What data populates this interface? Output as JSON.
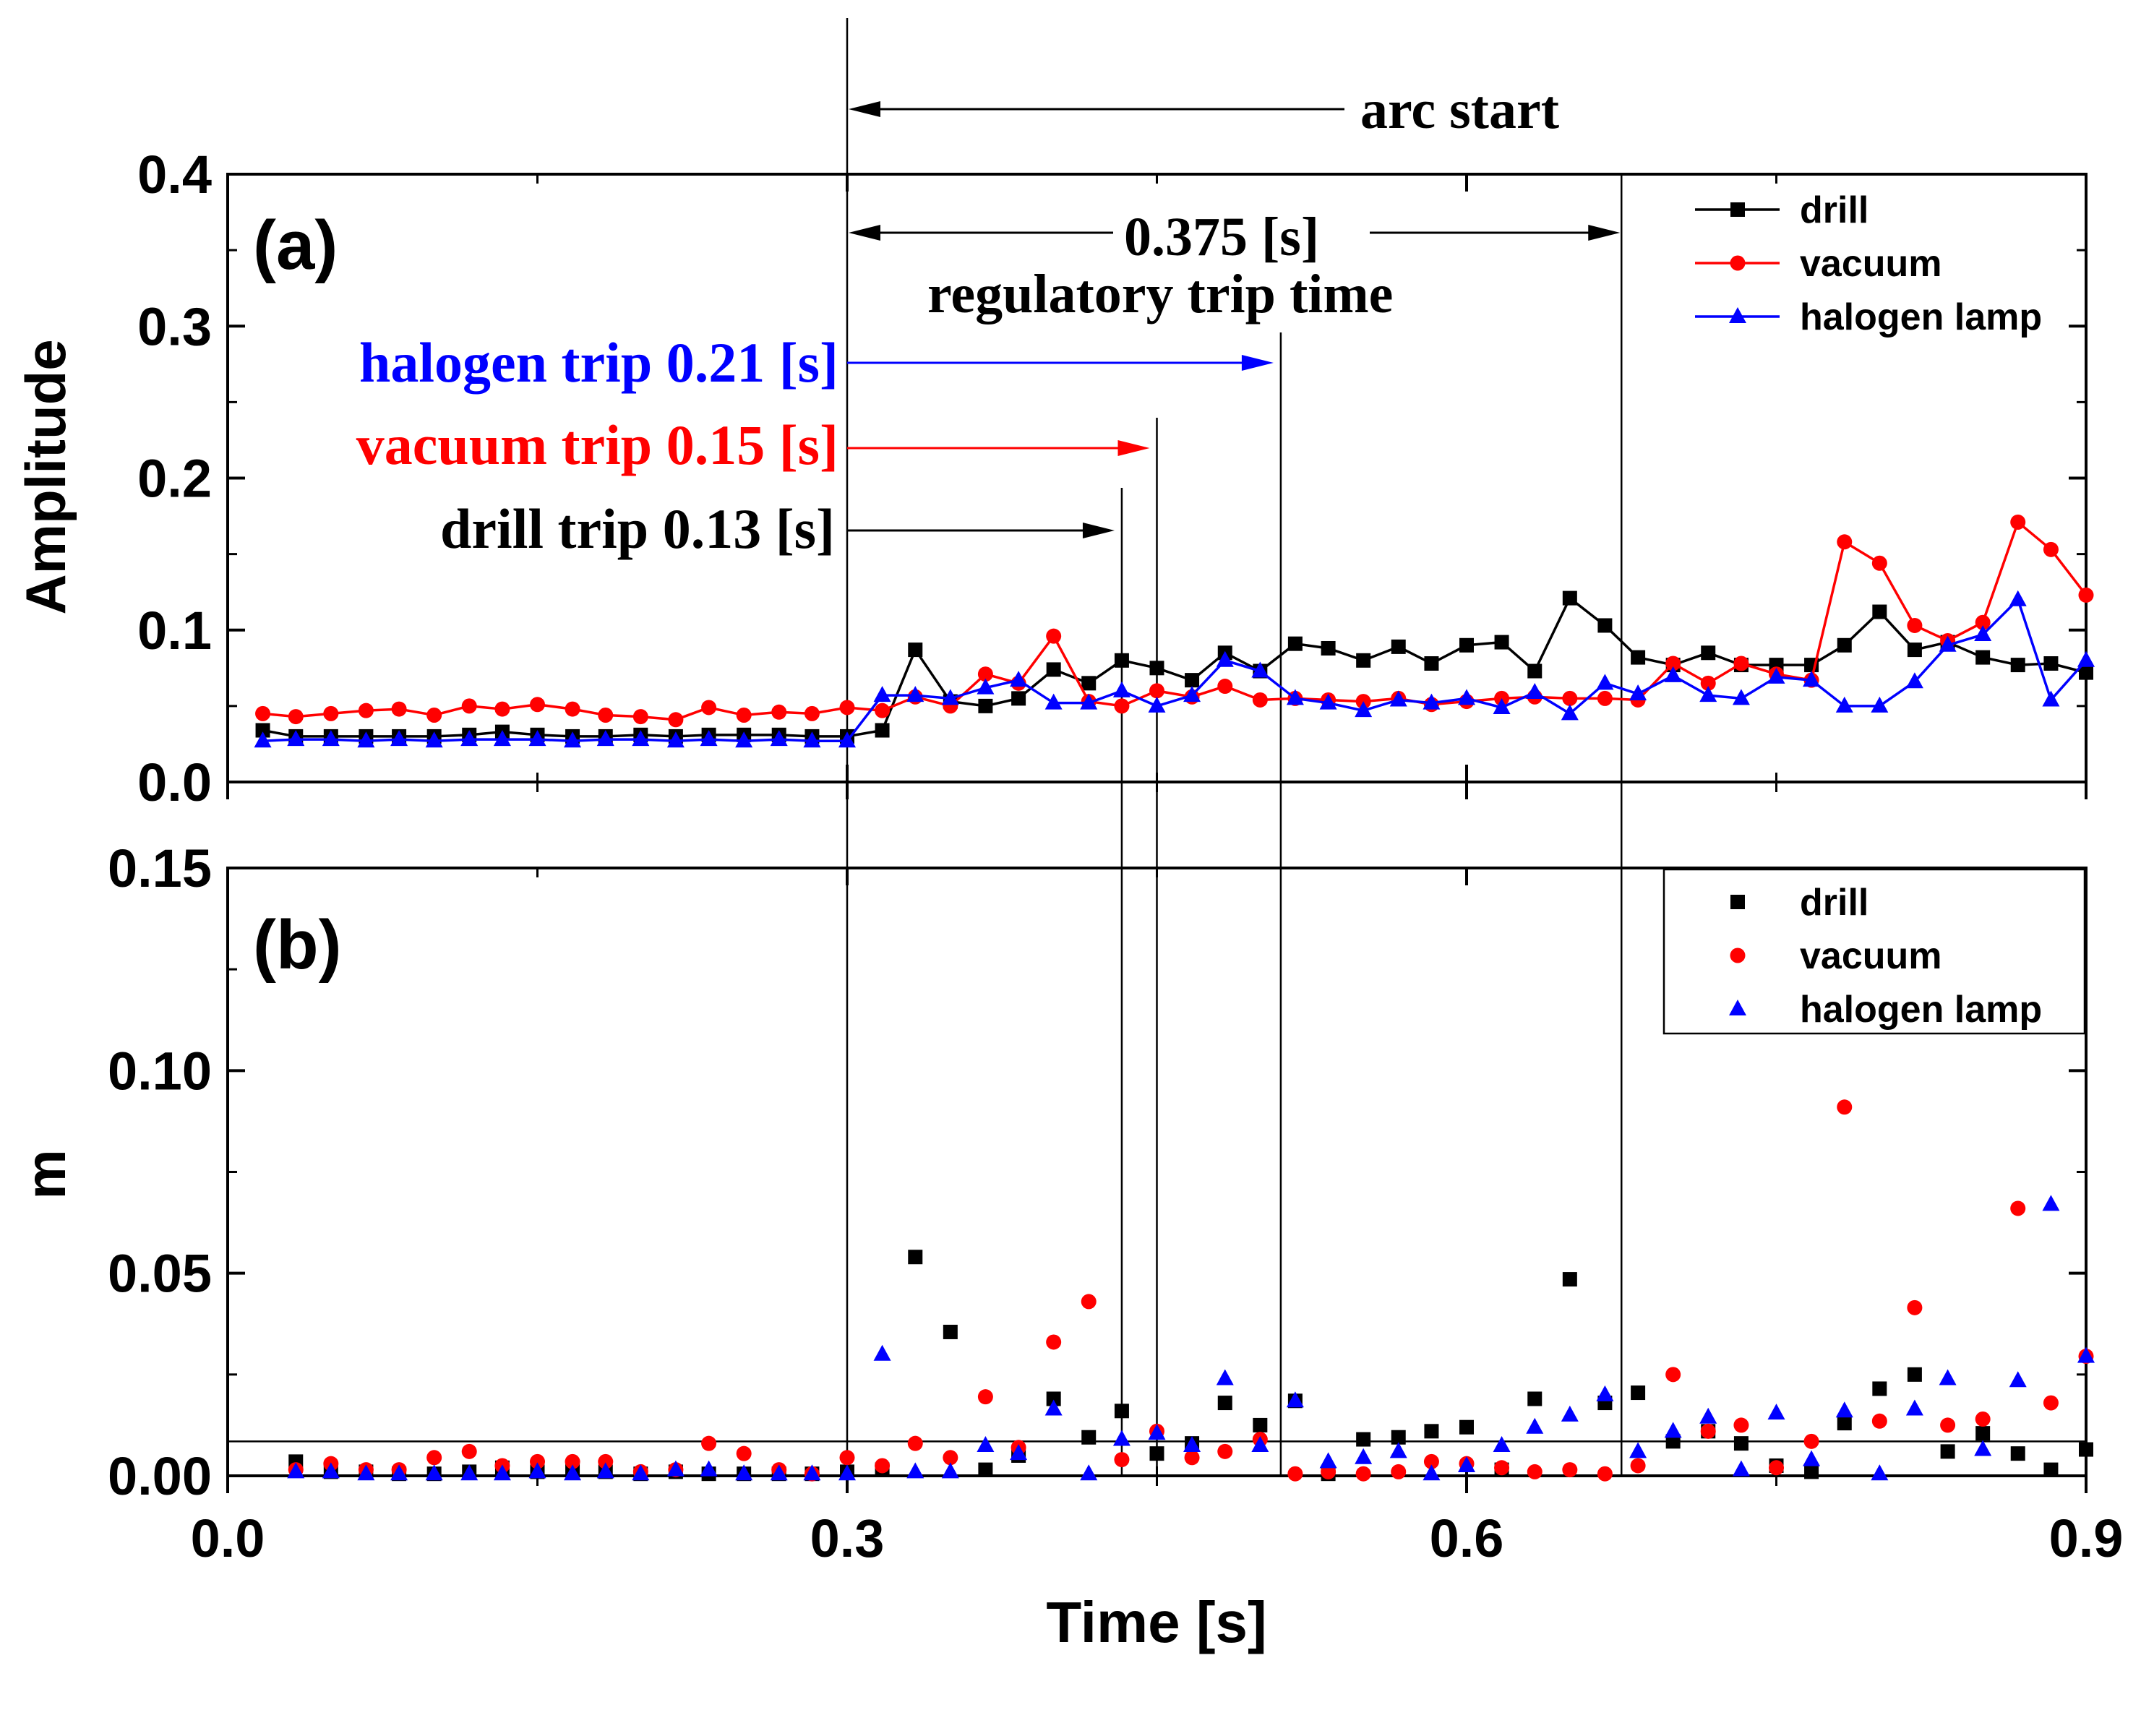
{
  "chart_data": [
    {
      "panel": "(a)",
      "type": "line",
      "xlabel": "",
      "ylabel": "Amplitude",
      "xlim": [
        0,
        0.9
      ],
      "ylim": [
        0,
        0.4
      ],
      "xticks": [
        "0.0",
        "0.3",
        "0.6",
        "0.9"
      ],
      "yticks": [
        "0.0",
        "0.1",
        "0.2",
        "0.3",
        "0.4"
      ],
      "legend_position": "top-right",
      "series": [
        {
          "name": "drill",
          "color": "#000000",
          "marker": "square",
          "x": [
            0.017,
            0.033,
            0.05,
            0.067,
            0.083,
            0.1,
            0.117,
            0.133,
            0.15,
            0.167,
            0.183,
            0.2,
            0.217,
            0.233,
            0.25,
            0.267,
            0.283,
            0.3,
            0.317,
            0.333,
            0.35,
            0.367,
            0.383,
            0.4,
            0.417,
            0.433,
            0.45,
            0.467,
            0.483,
            0.5,
            0.517,
            0.533,
            0.55,
            0.567,
            0.583,
            0.6,
            0.617,
            0.633,
            0.65,
            0.667,
            0.683,
            0.7,
            0.717,
            0.733,
            0.75,
            0.767,
            0.783,
            0.8,
            0.817,
            0.833,
            0.85,
            0.867,
            0.883,
            0.9
          ],
          "values": [
            0.034,
            0.03,
            0.03,
            0.03,
            0.03,
            0.03,
            0.031,
            0.033,
            0.031,
            0.03,
            0.03,
            0.031,
            0.03,
            0.031,
            0.031,
            0.031,
            0.03,
            0.03,
            0.034,
            0.087,
            0.053,
            0.05,
            0.055,
            0.074,
            0.065,
            0.08,
            0.075,
            0.067,
            0.085,
            0.073,
            0.091,
            0.088,
            0.08,
            0.089,
            0.078,
            0.09,
            0.092,
            0.073,
            0.121,
            0.103,
            0.082,
            0.077,
            0.085,
            0.077,
            0.077,
            0.077,
            0.09,
            0.112,
            0.087,
            0.092,
            0.082,
            0.077,
            0.078,
            0.072
          ]
        },
        {
          "name": "vacuum",
          "color": "#ff0000",
          "marker": "circle",
          "x": [
            0.017,
            0.033,
            0.05,
            0.067,
            0.083,
            0.1,
            0.117,
            0.133,
            0.15,
            0.167,
            0.183,
            0.2,
            0.217,
            0.233,
            0.25,
            0.267,
            0.283,
            0.3,
            0.317,
            0.333,
            0.35,
            0.367,
            0.383,
            0.4,
            0.417,
            0.433,
            0.45,
            0.467,
            0.483,
            0.5,
            0.517,
            0.533,
            0.55,
            0.567,
            0.583,
            0.6,
            0.617,
            0.633,
            0.65,
            0.667,
            0.683,
            0.7,
            0.717,
            0.733,
            0.75,
            0.767,
            0.783,
            0.8,
            0.817,
            0.833,
            0.85,
            0.867,
            0.883,
            0.9
          ],
          "values": [
            0.045,
            0.043,
            0.045,
            0.047,
            0.048,
            0.044,
            0.05,
            0.048,
            0.051,
            0.048,
            0.044,
            0.043,
            0.041,
            0.049,
            0.044,
            0.046,
            0.045,
            0.049,
            0.047,
            0.056,
            0.05,
            0.071,
            0.065,
            0.096,
            0.053,
            0.05,
            0.06,
            0.056,
            0.063,
            0.054,
            0.055,
            0.054,
            0.053,
            0.055,
            0.051,
            0.053,
            0.055,
            0.056,
            0.055,
            0.055,
            0.054,
            0.078,
            0.065,
            0.078,
            0.071,
            0.067,
            0.158,
            0.144,
            0.103,
            0.093,
            0.105,
            0.171,
            0.153,
            0.123
          ]
        },
        {
          "name": "halogen lamp",
          "color": "#0000ff",
          "marker": "triangle",
          "x": [
            0.017,
            0.033,
            0.05,
            0.067,
            0.083,
            0.1,
            0.117,
            0.133,
            0.15,
            0.167,
            0.183,
            0.2,
            0.217,
            0.233,
            0.25,
            0.267,
            0.283,
            0.3,
            0.317,
            0.333,
            0.35,
            0.367,
            0.383,
            0.4,
            0.417,
            0.433,
            0.45,
            0.467,
            0.483,
            0.5,
            0.517,
            0.533,
            0.55,
            0.567,
            0.583,
            0.6,
            0.617,
            0.633,
            0.65,
            0.667,
            0.683,
            0.7,
            0.717,
            0.733,
            0.75,
            0.767,
            0.783,
            0.8,
            0.817,
            0.833,
            0.85,
            0.867,
            0.883,
            0.9
          ],
          "values": [
            0.027,
            0.028,
            0.028,
            0.027,
            0.028,
            0.027,
            0.028,
            0.028,
            0.028,
            0.027,
            0.028,
            0.028,
            0.027,
            0.028,
            0.027,
            0.028,
            0.027,
            0.027,
            0.057,
            0.057,
            0.055,
            0.062,
            0.067,
            0.052,
            0.052,
            0.06,
            0.05,
            0.057,
            0.08,
            0.073,
            0.055,
            0.052,
            0.047,
            0.054,
            0.052,
            0.055,
            0.049,
            0.059,
            0.045,
            0.065,
            0.058,
            0.07,
            0.057,
            0.055,
            0.069,
            0.067,
            0.05,
            0.05,
            0.066,
            0.09,
            0.097,
            0.12,
            0.054,
            0.08
          ]
        }
      ]
    },
    {
      "panel": "(b)",
      "type": "scatter",
      "xlabel": "Time [s]",
      "ylabel": "m",
      "xlim": [
        0,
        0.9
      ],
      "ylim": [
        0,
        0.15
      ],
      "xticks": [
        "0.0",
        "0.3",
        "0.6",
        "0.9"
      ],
      "yticks": [
        "0.00",
        "0.05",
        "0.10",
        "0.15"
      ],
      "threshold": 0.0085,
      "legend_position": "top-right",
      "series": [
        {
          "name": "drill",
          "color": "#000000",
          "marker": "square",
          "x": [
            0.033,
            0.05,
            0.067,
            0.083,
            0.1,
            0.117,
            0.133,
            0.15,
            0.167,
            0.183,
            0.2,
            0.217,
            0.233,
            0.25,
            0.267,
            0.283,
            0.3,
            0.317,
            0.333,
            0.35,
            0.367,
            0.383,
            0.4,
            0.417,
            0.433,
            0.45,
            0.467,
            0.483,
            0.5,
            0.517,
            0.533,
            0.55,
            0.567,
            0.583,
            0.6,
            0.617,
            0.633,
            0.65,
            0.667,
            0.683,
            0.7,
            0.717,
            0.733,
            0.75,
            0.767,
            0.783,
            0.8,
            0.817,
            0.833,
            0.85,
            0.867,
            0.883,
            0.9
          ],
          "values": [
            0.0035,
            0.001,
            0.001,
            0.0005,
            0.0005,
            0.001,
            0.002,
            0.001,
            0.0015,
            0.001,
            0.0005,
            0.001,
            0.0005,
            0.0005,
            0.0005,
            0.0005,
            0.001,
            0.0015,
            0.054,
            0.0355,
            0.0015,
            0.005,
            0.019,
            0.0095,
            0.016,
            0.0055,
            0.008,
            0.018,
            0.0125,
            0.0185,
            0.0005,
            0.009,
            0.0095,
            0.011,
            0.012,
            0.0015,
            0.019,
            0.0485,
            0.018,
            0.0205,
            0.0085,
            0.011,
            0.008,
            0.0025,
            0.001,
            0.013,
            0.0215,
            0.025,
            0.006,
            0.0105,
            0.0055,
            0.0015,
            0.0065
          ]
        },
        {
          "name": "vacuum",
          "color": "#ff0000",
          "marker": "circle",
          "x": [
            0.033,
            0.05,
            0.067,
            0.083,
            0.1,
            0.117,
            0.133,
            0.15,
            0.167,
            0.183,
            0.2,
            0.217,
            0.233,
            0.25,
            0.267,
            0.283,
            0.3,
            0.317,
            0.333,
            0.35,
            0.367,
            0.383,
            0.4,
            0.417,
            0.433,
            0.45,
            0.467,
            0.483,
            0.5,
            0.517,
            0.533,
            0.55,
            0.567,
            0.583,
            0.6,
            0.617,
            0.633,
            0.65,
            0.667,
            0.683,
            0.7,
            0.717,
            0.733,
            0.75,
            0.767,
            0.783,
            0.8,
            0.817,
            0.833,
            0.85,
            0.867,
            0.883,
            0.9
          ],
          "values": [
            0.0015,
            0.003,
            0.0015,
            0.0015,
            0.0045,
            0.006,
            0.0025,
            0.0035,
            0.0035,
            0.0035,
            0.001,
            0.0015,
            0.008,
            0.0055,
            0.0015,
            0.0005,
            0.0045,
            0.0025,
            0.008,
            0.0045,
            0.0195,
            0.007,
            0.033,
            0.043,
            0.004,
            0.011,
            0.0045,
            0.006,
            0.009,
            0.0005,
            0.001,
            0.0005,
            0.001,
            0.0035,
            0.003,
            0.002,
            0.001,
            0.0015,
            0.0005,
            0.0025,
            0.025,
            0.011,
            0.0125,
            0.002,
            0.0085,
            0.091,
            0.0135,
            0.0415,
            0.0125,
            0.014,
            0.066,
            0.018,
            0.0295
          ]
        },
        {
          "name": "halogen lamp",
          "color": "#0000ff",
          "marker": "triangle",
          "x": [
            0.033,
            0.05,
            0.067,
            0.083,
            0.1,
            0.117,
            0.133,
            0.15,
            0.167,
            0.183,
            0.2,
            0.217,
            0.233,
            0.25,
            0.267,
            0.283,
            0.3,
            0.317,
            0.333,
            0.35,
            0.367,
            0.383,
            0.4,
            0.417,
            0.433,
            0.45,
            0.467,
            0.483,
            0.5,
            0.517,
            0.533,
            0.55,
            0.567,
            0.583,
            0.6,
            0.617,
            0.633,
            0.65,
            0.667,
            0.683,
            0.7,
            0.717,
            0.733,
            0.75,
            0.767,
            0.783,
            0.8,
            0.817,
            0.833,
            0.85,
            0.867,
            0.883,
            0.9
          ],
          "values": [
            0.001,
            0.001,
            0.0005,
            0.0005,
            0.0005,
            0.0005,
            0.0005,
            0.001,
            0.0005,
            0.001,
            0.0005,
            0.0015,
            0.0015,
            0.0005,
            0.0005,
            0.0005,
            0.0005,
            0.03,
            0.001,
            0.001,
            0.0075,
            0.0055,
            0.0165,
            0.0005,
            0.009,
            0.0105,
            0.0075,
            0.024,
            0.0075,
            0.0185,
            0.0035,
            0.0045,
            0.006,
            0.0005,
            0.0025,
            0.0075,
            0.012,
            0.015,
            0.02,
            0.006,
            0.011,
            0.0145,
            0.0015,
            0.0155,
            0.004,
            0.016,
            0.0005,
            0.0165,
            0.024,
            0.0065,
            0.0235,
            0.067,
            0.0295
          ]
        }
      ]
    }
  ],
  "annotations": {
    "panel_a_label": "(a)",
    "panel_b_label": "(b)",
    "arc_start": "arc start",
    "regulatory_value": "0.375 [s]",
    "regulatory_text": "regulatory trip time",
    "halogen_trip": "halogen trip 0.21 [s]",
    "vacuum_trip": "vacuum trip 0.15 [s]",
    "drill_trip": "drill trip 0.13 [s]",
    "arc_start_x": 0.3,
    "regulatory_end_x": 0.675,
    "halogen_trip_x": 0.51,
    "vacuum_trip_x": 0.45,
    "drill_trip_x": 0.433
  }
}
